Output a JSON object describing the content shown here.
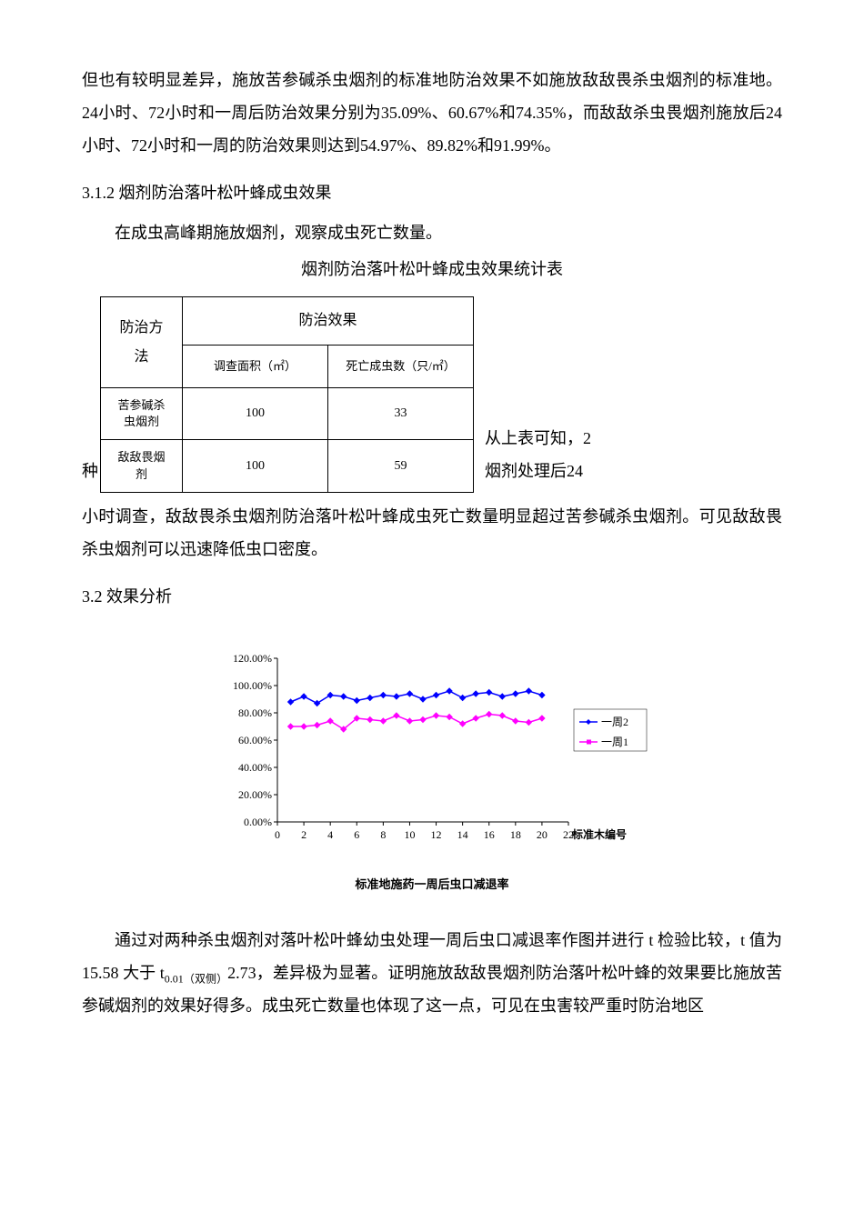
{
  "intro_paragraph": "但也有较明显差异，施放苦参碱杀虫烟剂的标准地防治效果不如施放敌敌畏杀虫烟剂的标准地。24小时、72小时和一周后防治效果分别为35.09%、60.67%和74.35%，而敌敌杀虫畏烟剂施放后24小时、72小时和一周的防治效果则达到54.97%、89.82%和91.99%。",
  "section_3_1_2": {
    "heading": "3.1.2 烟剂防治落叶松叶蜂成虫效果",
    "line1": "在成虫高峰期施放烟剂，观察成虫死亡数量。",
    "table_title": "烟剂防治落叶松叶蜂成虫效果统计表"
  },
  "table": {
    "col1_header": "防治方法",
    "col_group_header": "防治效果",
    "col2_header": "调查面积（㎡）",
    "col3_header": "死亡成虫数（只/㎡）",
    "rows": [
      {
        "method": "苦参碱杀虫烟剂",
        "area": "100",
        "deaths": "33"
      },
      {
        "method": "敌敌畏烟剂",
        "area": "100",
        "deaths": "59"
      }
    ]
  },
  "wrap_text": {
    "left": "种",
    "right_line1": "从上表可知，2",
    "right_line2": "烟剂处理后24"
  },
  "after_table_paragraph": "小时调查，敌敌畏杀虫烟剂防治落叶松叶蜂成虫死亡数量明显超过苦参碱杀虫烟剂。可见敌敌畏杀虫烟剂可以迅速降低虫口密度。",
  "section_3_2_heading": "3.2 效果分析",
  "chart": {
    "type": "line",
    "y_ticks": [
      "0.00%",
      "20.00%",
      "40.00%",
      "60.00%",
      "80.00%",
      "100.00%",
      "120.00%"
    ],
    "x_ticks": [
      "0",
      "2",
      "4",
      "6",
      "8",
      "10",
      "12",
      "14",
      "16",
      "18",
      "20",
      "22"
    ],
    "x_label_suffix": "标准木编号",
    "legend": [
      "一周2",
      "一周1"
    ],
    "caption": "标准地施药一周后虫口减退率",
    "series2_color": "#0000ff",
    "series1_color": "#ff00ff",
    "grid_color": "#000000",
    "background_color": "#ffffff",
    "ylim": [
      0,
      120
    ],
    "series2_values": [
      88,
      92,
      87,
      93,
      92,
      89,
      91,
      93,
      92,
      94,
      90,
      93,
      96,
      91,
      94,
      95,
      92,
      94,
      96,
      93
    ],
    "series1_values": [
      70,
      70,
      71,
      74,
      68,
      76,
      75,
      74,
      78,
      74,
      75,
      78,
      77,
      72,
      76,
      79,
      78,
      74,
      73,
      76
    ],
    "marker": "diamond",
    "font_size": 12
  },
  "final_paragraph_part1": "通过对两种杀虫烟剂对落叶松叶蜂幼虫处理一周后虫口减退率作图并进行 t 检验比较，t 值为 15.58 大于 t",
  "final_paragraph_sub": "0.01（双侧）",
  "final_paragraph_part2": "2.73，差异极为显著。证明施放敌敌畏烟剂防治落叶松叶蜂的效果要比施放苦参碱烟剂的效果好得多。成虫死亡数量也体现了这一点，可见在虫害较严重时防治地区"
}
